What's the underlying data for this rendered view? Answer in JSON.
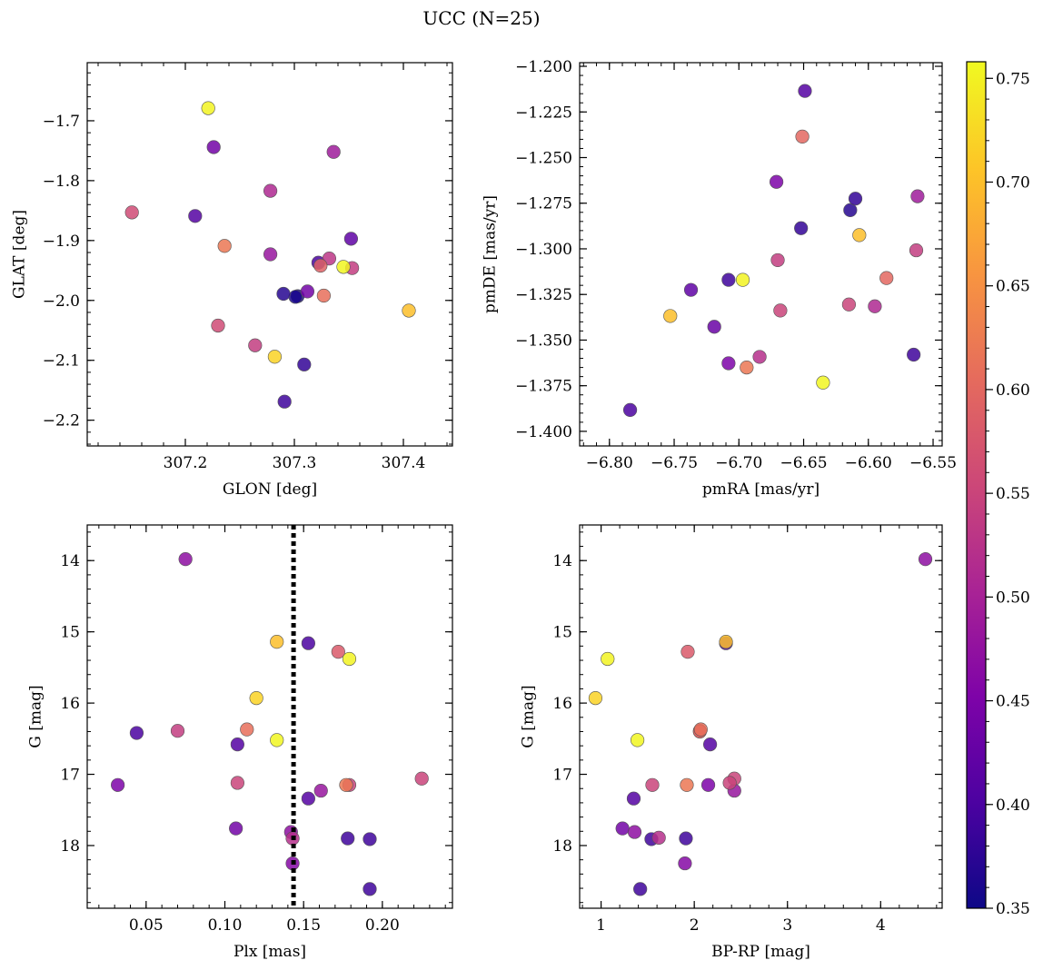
{
  "figure_title": "UCC (N=25)",
  "colorbar": {
    "min": 0.35,
    "max": 0.758,
    "ticks": [
      0.35,
      0.4,
      0.45,
      0.5,
      0.55,
      0.6,
      0.65,
      0.7,
      0.75
    ],
    "tick_labels": [
      "0.35",
      "0.40",
      "0.45",
      "0.50",
      "0.55",
      "0.60",
      "0.65",
      "0.70",
      "0.75"
    ],
    "colormap": "plasma"
  },
  "chart_data": [
    {
      "type": "scatter",
      "xlabel": "GLON [deg]",
      "ylabel": "GLAT [deg]",
      "xlim": [
        307.11,
        307.445
      ],
      "ylim": [
        -2.243,
        -1.603
      ],
      "y_inverted": false,
      "xticks": [
        307.2,
        307.3,
        307.4
      ],
      "xtick_labels": [
        "307.2",
        "307.3",
        "307.4"
      ],
      "yticks": [
        -1.7,
        -1.8,
        -1.9,
        -2.0,
        -2.1,
        -2.2
      ],
      "ytick_labels": [
        "−1.7",
        "−1.8",
        "−1.9",
        "−2.0",
        "−2.1",
        "−2.2"
      ],
      "points": [
        {
          "x": 307.221,
          "y": -1.679,
          "c": 0.752
        },
        {
          "x": 307.226,
          "y": -1.744,
          "c": 0.44
        },
        {
          "x": 307.336,
          "y": -1.752,
          "c": 0.49
        },
        {
          "x": 307.278,
          "y": -1.817,
          "c": 0.51
        },
        {
          "x": 307.151,
          "y": -1.853,
          "c": 0.56
        },
        {
          "x": 307.209,
          "y": -1.859,
          "c": 0.41
        },
        {
          "x": 307.352,
          "y": -1.897,
          "c": 0.42
        },
        {
          "x": 307.236,
          "y": -1.909,
          "c": 0.62
        },
        {
          "x": 307.278,
          "y": -1.923,
          "c": 0.48
        },
        {
          "x": 307.332,
          "y": -1.93,
          "c": 0.53
        },
        {
          "x": 307.322,
          "y": -1.937,
          "c": 0.4
        },
        {
          "x": 307.324,
          "y": -1.942,
          "c": 0.59
        },
        {
          "x": 307.345,
          "y": -1.944,
          "c": 0.755
        },
        {
          "x": 307.353,
          "y": -1.946,
          "c": 0.54
        },
        {
          "x": 307.312,
          "y": -1.985,
          "c": 0.44
        },
        {
          "x": 307.29,
          "y": -1.989,
          "c": 0.37
        },
        {
          "x": 307.303,
          "y": -1.993,
          "c": 0.36
        },
        {
          "x": 307.327,
          "y": -1.992,
          "c": 0.61
        },
        {
          "x": 307.405,
          "y": -2.017,
          "c": 0.7
        },
        {
          "x": 307.23,
          "y": -2.042,
          "c": 0.56
        },
        {
          "x": 307.264,
          "y": -2.075,
          "c": 0.54
        },
        {
          "x": 307.282,
          "y": -2.094,
          "c": 0.72
        },
        {
          "x": 307.309,
          "y": -2.107,
          "c": 0.38
        },
        {
          "x": 307.291,
          "y": -2.169,
          "c": 0.39
        },
        {
          "x": 307.301,
          "y": -1.994,
          "c": 0.36
        }
      ]
    },
    {
      "type": "scatter",
      "xlabel": "pmRA [mas/yr]",
      "ylabel": "pmDE [mas/yr]",
      "xlim": [
        -6.823,
        -6.543
      ],
      "ylim": [
        -1.408,
        -1.198
      ],
      "y_inverted": false,
      "xticks": [
        -6.8,
        -6.75,
        -6.7,
        -6.65,
        -6.6,
        -6.55
      ],
      "xtick_labels": [
        "−6.80",
        "−6.75",
        "−6.70",
        "−6.65",
        "−6.60",
        "−6.55"
      ],
      "yticks": [
        -1.2,
        -1.225,
        -1.25,
        -1.275,
        -1.3,
        -1.325,
        -1.35,
        -1.375,
        -1.4
      ],
      "ytick_labels": [
        "−1.200",
        "−1.225",
        "−1.250",
        "−1.275",
        "−1.300",
        "−1.325",
        "−1.350",
        "−1.375",
        "−1.400"
      ],
      "points": [
        {
          "x": -6.649,
          "y": -1.2135,
          "c": 0.41
        },
        {
          "x": -6.651,
          "y": -1.2385,
          "c": 0.6
        },
        {
          "x": -6.671,
          "y": -1.2633,
          "c": 0.45
        },
        {
          "x": -6.61,
          "y": -1.2725,
          "c": 0.38
        },
        {
          "x": -6.562,
          "y": -1.2712,
          "c": 0.49
        },
        {
          "x": -6.614,
          "y": -1.2788,
          "c": 0.37
        },
        {
          "x": -6.652,
          "y": -1.2887,
          "c": 0.38
        },
        {
          "x": -6.607,
          "y": -1.2925,
          "c": 0.7
        },
        {
          "x": -6.563,
          "y": -1.3008,
          "c": 0.54
        },
        {
          "x": -6.67,
          "y": -1.3062,
          "c": 0.54
        },
        {
          "x": -6.586,
          "y": -1.316,
          "c": 0.6
        },
        {
          "x": -6.708,
          "y": -1.317,
          "c": 0.39
        },
        {
          "x": -6.697,
          "y": -1.317,
          "c": 0.752
        },
        {
          "x": -6.737,
          "y": -1.3225,
          "c": 0.42
        },
        {
          "x": -6.615,
          "y": -1.3305,
          "c": 0.55
        },
        {
          "x": -6.595,
          "y": -1.3315,
          "c": 0.51
        },
        {
          "x": -6.668,
          "y": -1.3338,
          "c": 0.55
        },
        {
          "x": -6.753,
          "y": -1.3368,
          "c": 0.7
        },
        {
          "x": -6.719,
          "y": -1.3427,
          "c": 0.43
        },
        {
          "x": -6.684,
          "y": -1.3592,
          "c": 0.52
        },
        {
          "x": -6.565,
          "y": -1.358,
          "c": 0.39
        },
        {
          "x": -6.708,
          "y": -1.3627,
          "c": 0.45
        },
        {
          "x": -6.694,
          "y": -1.365,
          "c": 0.62
        },
        {
          "x": -6.635,
          "y": -1.3733,
          "c": 0.755
        },
        {
          "x": -6.784,
          "y": -1.3883,
          "c": 0.4
        }
      ]
    },
    {
      "type": "scatter",
      "xlabel": "Plx [mas]",
      "ylabel": "G [mag]",
      "xlim": [
        0.0126,
        0.2445
      ],
      "ylim": [
        18.88,
        13.5
      ],
      "y_inverted": true,
      "vline": 0.1436,
      "xticks": [
        0.05,
        0.1,
        0.15,
        0.2
      ],
      "xtick_labels": [
        "0.05",
        "0.10",
        "0.15",
        "0.20"
      ],
      "yticks": [
        14,
        15,
        16,
        17,
        18
      ],
      "ytick_labels": [
        "14",
        "15",
        "16",
        "17",
        "18"
      ],
      "points": [
        {
          "x": 0.075,
          "y": 13.98,
          "c": 0.47
        },
        {
          "x": 0.133,
          "y": 15.14,
          "c": 0.7
        },
        {
          "x": 0.153,
          "y": 15.16,
          "c": 0.4
        },
        {
          "x": 0.172,
          "y": 15.28,
          "c": 0.58
        },
        {
          "x": 0.179,
          "y": 15.38,
          "c": 0.752
        },
        {
          "x": 0.12,
          "y": 15.93,
          "c": 0.72
        },
        {
          "x": 0.07,
          "y": 16.39,
          "c": 0.54
        },
        {
          "x": 0.044,
          "y": 16.42,
          "c": 0.4
        },
        {
          "x": 0.114,
          "y": 16.37,
          "c": 0.61
        },
        {
          "x": 0.133,
          "y": 16.52,
          "c": 0.755
        },
        {
          "x": 0.108,
          "y": 16.58,
          "c": 0.41
        },
        {
          "x": 0.225,
          "y": 17.06,
          "c": 0.55
        },
        {
          "x": 0.108,
          "y": 17.12,
          "c": 0.55
        },
        {
          "x": 0.032,
          "y": 17.15,
          "c": 0.45
        },
        {
          "x": 0.179,
          "y": 17.15,
          "c": 0.55
        },
        {
          "x": 0.177,
          "y": 17.15,
          "c": 0.62
        },
        {
          "x": 0.161,
          "y": 17.23,
          "c": 0.48
        },
        {
          "x": 0.153,
          "y": 17.34,
          "c": 0.41
        },
        {
          "x": 0.107,
          "y": 17.76,
          "c": 0.44
        },
        {
          "x": 0.142,
          "y": 17.81,
          "c": 0.47
        },
        {
          "x": 0.178,
          "y": 17.9,
          "c": 0.39
        },
        {
          "x": 0.192,
          "y": 17.91,
          "c": 0.39
        },
        {
          "x": 0.143,
          "y": 17.9,
          "c": 0.52
        },
        {
          "x": 0.143,
          "y": 18.25,
          "c": 0.46
        },
        {
          "x": 0.192,
          "y": 18.61,
          "c": 0.39
        }
      ]
    },
    {
      "type": "scatter",
      "xlabel": "BP-RP [mag]",
      "ylabel": "G [mag]",
      "xlim": [
        0.77,
        4.66
      ],
      "ylim": [
        18.88,
        13.5
      ],
      "y_inverted": true,
      "xticks": [
        1,
        2,
        3,
        4
      ],
      "xtick_labels": [
        "1",
        "2",
        "3",
        "4"
      ],
      "yticks": [
        14,
        15,
        16,
        17,
        18
      ],
      "ytick_labels": [
        "14",
        "15",
        "16",
        "17",
        "18"
      ],
      "points": [
        {
          "x": 4.48,
          "y": 13.98,
          "c": 0.47
        },
        {
          "x": 2.34,
          "y": 15.16,
          "c": 0.4
        },
        {
          "x": 2.34,
          "y": 15.14,
          "c": 0.7
        },
        {
          "x": 1.93,
          "y": 15.28,
          "c": 0.58
        },
        {
          "x": 1.07,
          "y": 15.38,
          "c": 0.752
        },
        {
          "x": 0.94,
          "y": 15.93,
          "c": 0.72
        },
        {
          "x": 2.06,
          "y": 16.39,
          "c": 0.54
        },
        {
          "x": 2.07,
          "y": 16.37,
          "c": 0.61
        },
        {
          "x": 1.39,
          "y": 16.52,
          "c": 0.755
        },
        {
          "x": 2.17,
          "y": 16.58,
          "c": 0.41
        },
        {
          "x": 2.43,
          "y": 17.06,
          "c": 0.55
        },
        {
          "x": 2.38,
          "y": 17.12,
          "c": 0.55
        },
        {
          "x": 1.55,
          "y": 17.15,
          "c": 0.55
        },
        {
          "x": 1.92,
          "y": 17.15,
          "c": 0.62
        },
        {
          "x": 2.15,
          "y": 17.15,
          "c": 0.45
        },
        {
          "x": 2.43,
          "y": 17.23,
          "c": 0.48
        },
        {
          "x": 1.35,
          "y": 17.34,
          "c": 0.41
        },
        {
          "x": 1.23,
          "y": 17.76,
          "c": 0.44
        },
        {
          "x": 1.36,
          "y": 17.81,
          "c": 0.47
        },
        {
          "x": 1.62,
          "y": 17.89,
          "c": 0.52
        },
        {
          "x": 1.91,
          "y": 17.9,
          "c": 0.39
        },
        {
          "x": 1.54,
          "y": 17.91,
          "c": 0.39
        },
        {
          "x": 1.9,
          "y": 18.25,
          "c": 0.46
        },
        {
          "x": 1.42,
          "y": 18.61,
          "c": 0.39
        },
        {
          "x": 2.06,
          "y": 16.4,
          "c": 0.6
        }
      ]
    }
  ]
}
